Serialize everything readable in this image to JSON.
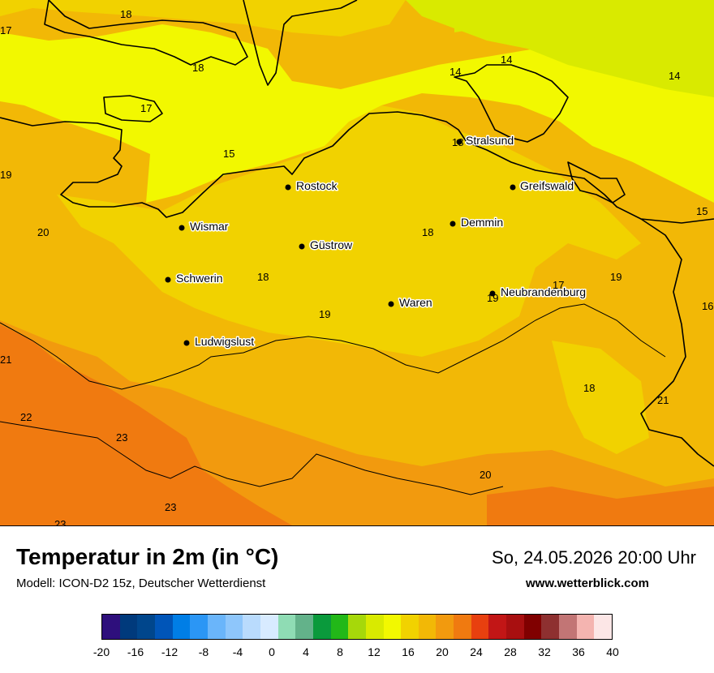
{
  "map": {
    "title": "Temperatur in 2m (in °C)",
    "model": "Modell: ICON-D2 15z, Deutscher Wetterdienst",
    "datetime": "So, 24.05.2026 20:00 Uhr",
    "source": "www.wetterblick.com",
    "cities": [
      {
        "name": "Stralsund"
      },
      {
        "name": "Rostock"
      },
      {
        "name": "Greifswald"
      },
      {
        "name": "Wismar"
      },
      {
        "name": "Demmin"
      },
      {
        "name": "Güstrow"
      },
      {
        "name": "Schwerin"
      },
      {
        "name": "Neubrandenburg"
      },
      {
        "name": "Waren"
      },
      {
        "name": "Ludwigslust"
      }
    ],
    "temperature_labels": [
      "18",
      "17",
      "18",
      "17",
      "14",
      "14",
      "14",
      "15",
      "19",
      "20",
      "18",
      "18",
      "18",
      "19",
      "19",
      "17",
      "19",
      "16",
      "15",
      "18",
      "21",
      "22",
      "23",
      "23",
      "23",
      "20",
      "21"
    ]
  },
  "legend": {
    "ticks": [
      "-20",
      "-16",
      "-12",
      "-8",
      "-4",
      "0",
      "4",
      "8",
      "12",
      "16",
      "20",
      "24",
      "28",
      "32",
      "36",
      "40"
    ],
    "colors": [
      "#2e0f7c",
      "#003a7c",
      "#00468c",
      "#0055b8",
      "#007ee6",
      "#2b96f5",
      "#6ab5fa",
      "#8ec6fb",
      "#b9dbfd",
      "#d8ebff",
      "#8fdcb4",
      "#63b28a",
      "#0a9a3c",
      "#22b818",
      "#a6d80a",
      "#d9ea00",
      "#f2f800",
      "#f1d200",
      "#f2b806",
      "#f29a0e",
      "#f07a10",
      "#e8400f",
      "#c21616",
      "#a80f10",
      "#800000",
      "#8e3030",
      "#c27575",
      "#f4b4b0",
      "#fce6e6"
    ]
  }
}
